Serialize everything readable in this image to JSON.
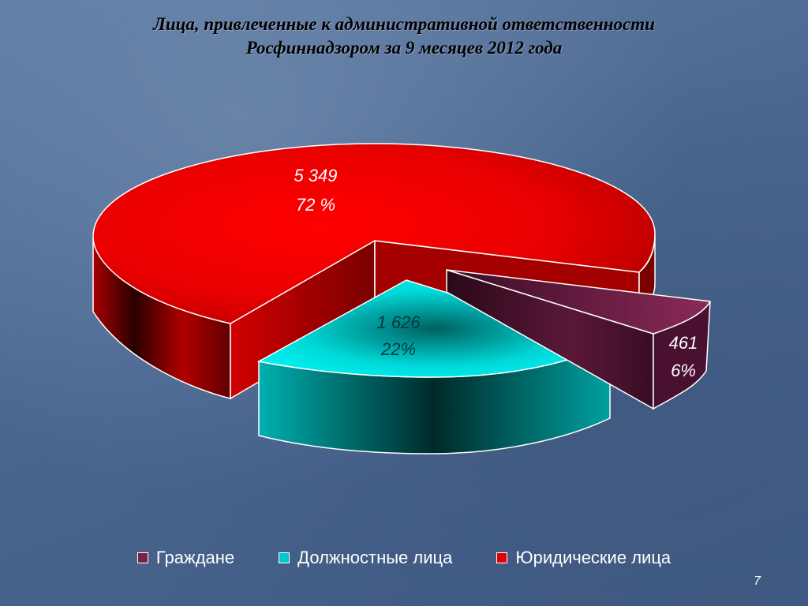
{
  "slide": {
    "title_line1": "Лица, привлеченные к административной ответственности",
    "title_line2": "Росфиннадзором за 9 месяцев 2012 года",
    "page_number": "7"
  },
  "chart_data": {
    "type": "pie",
    "title": "Лица, привлеченные к административной ответственности Росфиннадзором за 9 месяцев 2012 года",
    "style": "3d-exploded",
    "legend_position": "bottom",
    "slices": [
      {
        "name": "Граждане",
        "value": 461,
        "value_label": "461",
        "percent_label": "6%",
        "color": "#7a1f4a"
      },
      {
        "name": "Должностные лица",
        "value": 1626,
        "value_label": "1 626",
        "percent_label": "22%",
        "color": "#00c8c8"
      },
      {
        "name": "Юридические лица",
        "value": 5349,
        "value_label": "5 349",
        "percent_label": "72 %",
        "color": "#e00000"
      }
    ]
  }
}
